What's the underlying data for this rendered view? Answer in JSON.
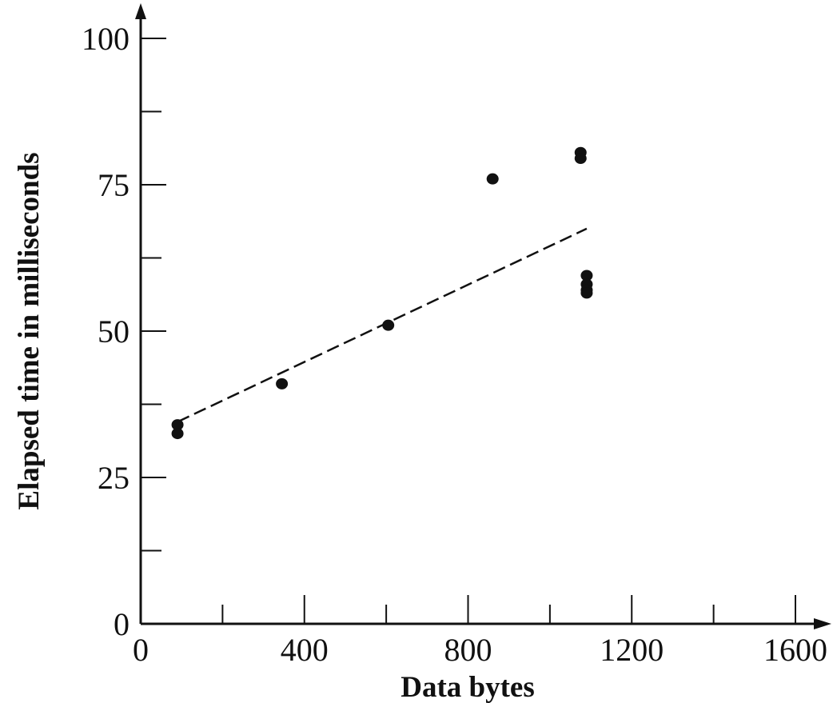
{
  "chart_data": {
    "type": "scatter",
    "xlabel": "Data bytes",
    "ylabel": "Elapsed time in milliseconds",
    "xlim": [
      0,
      1600
    ],
    "ylim": [
      0,
      100
    ],
    "x_ticks": [
      0,
      400,
      800,
      1200,
      1600
    ],
    "x_minor_ticks": [
      200,
      600,
      1000,
      1400
    ],
    "y_ticks": [
      0,
      25,
      50,
      75,
      100
    ],
    "y_minor_ticks": [
      12.5,
      37.5,
      62.5,
      87.5
    ],
    "points": [
      {
        "x": 90,
        "y": 34
      },
      {
        "x": 90,
        "y": 32.5
      },
      {
        "x": 345,
        "y": 41
      },
      {
        "x": 605,
        "y": 51
      },
      {
        "x": 860,
        "y": 76
      },
      {
        "x": 1075,
        "y": 80.5
      },
      {
        "x": 1075,
        "y": 79.5
      },
      {
        "x": 1090,
        "y": 59.5
      },
      {
        "x": 1090,
        "y": 58
      },
      {
        "x": 1090,
        "y": 57
      },
      {
        "x": 1090,
        "y": 56.5
      }
    ],
    "trend_line": {
      "style": "dashed",
      "x": [
        90,
        1090
      ],
      "y": [
        34.5,
        67.5
      ]
    },
    "grid": false,
    "colors": {
      "axis": "#111111",
      "marker": "#111111",
      "background": "#ffffff"
    }
  }
}
